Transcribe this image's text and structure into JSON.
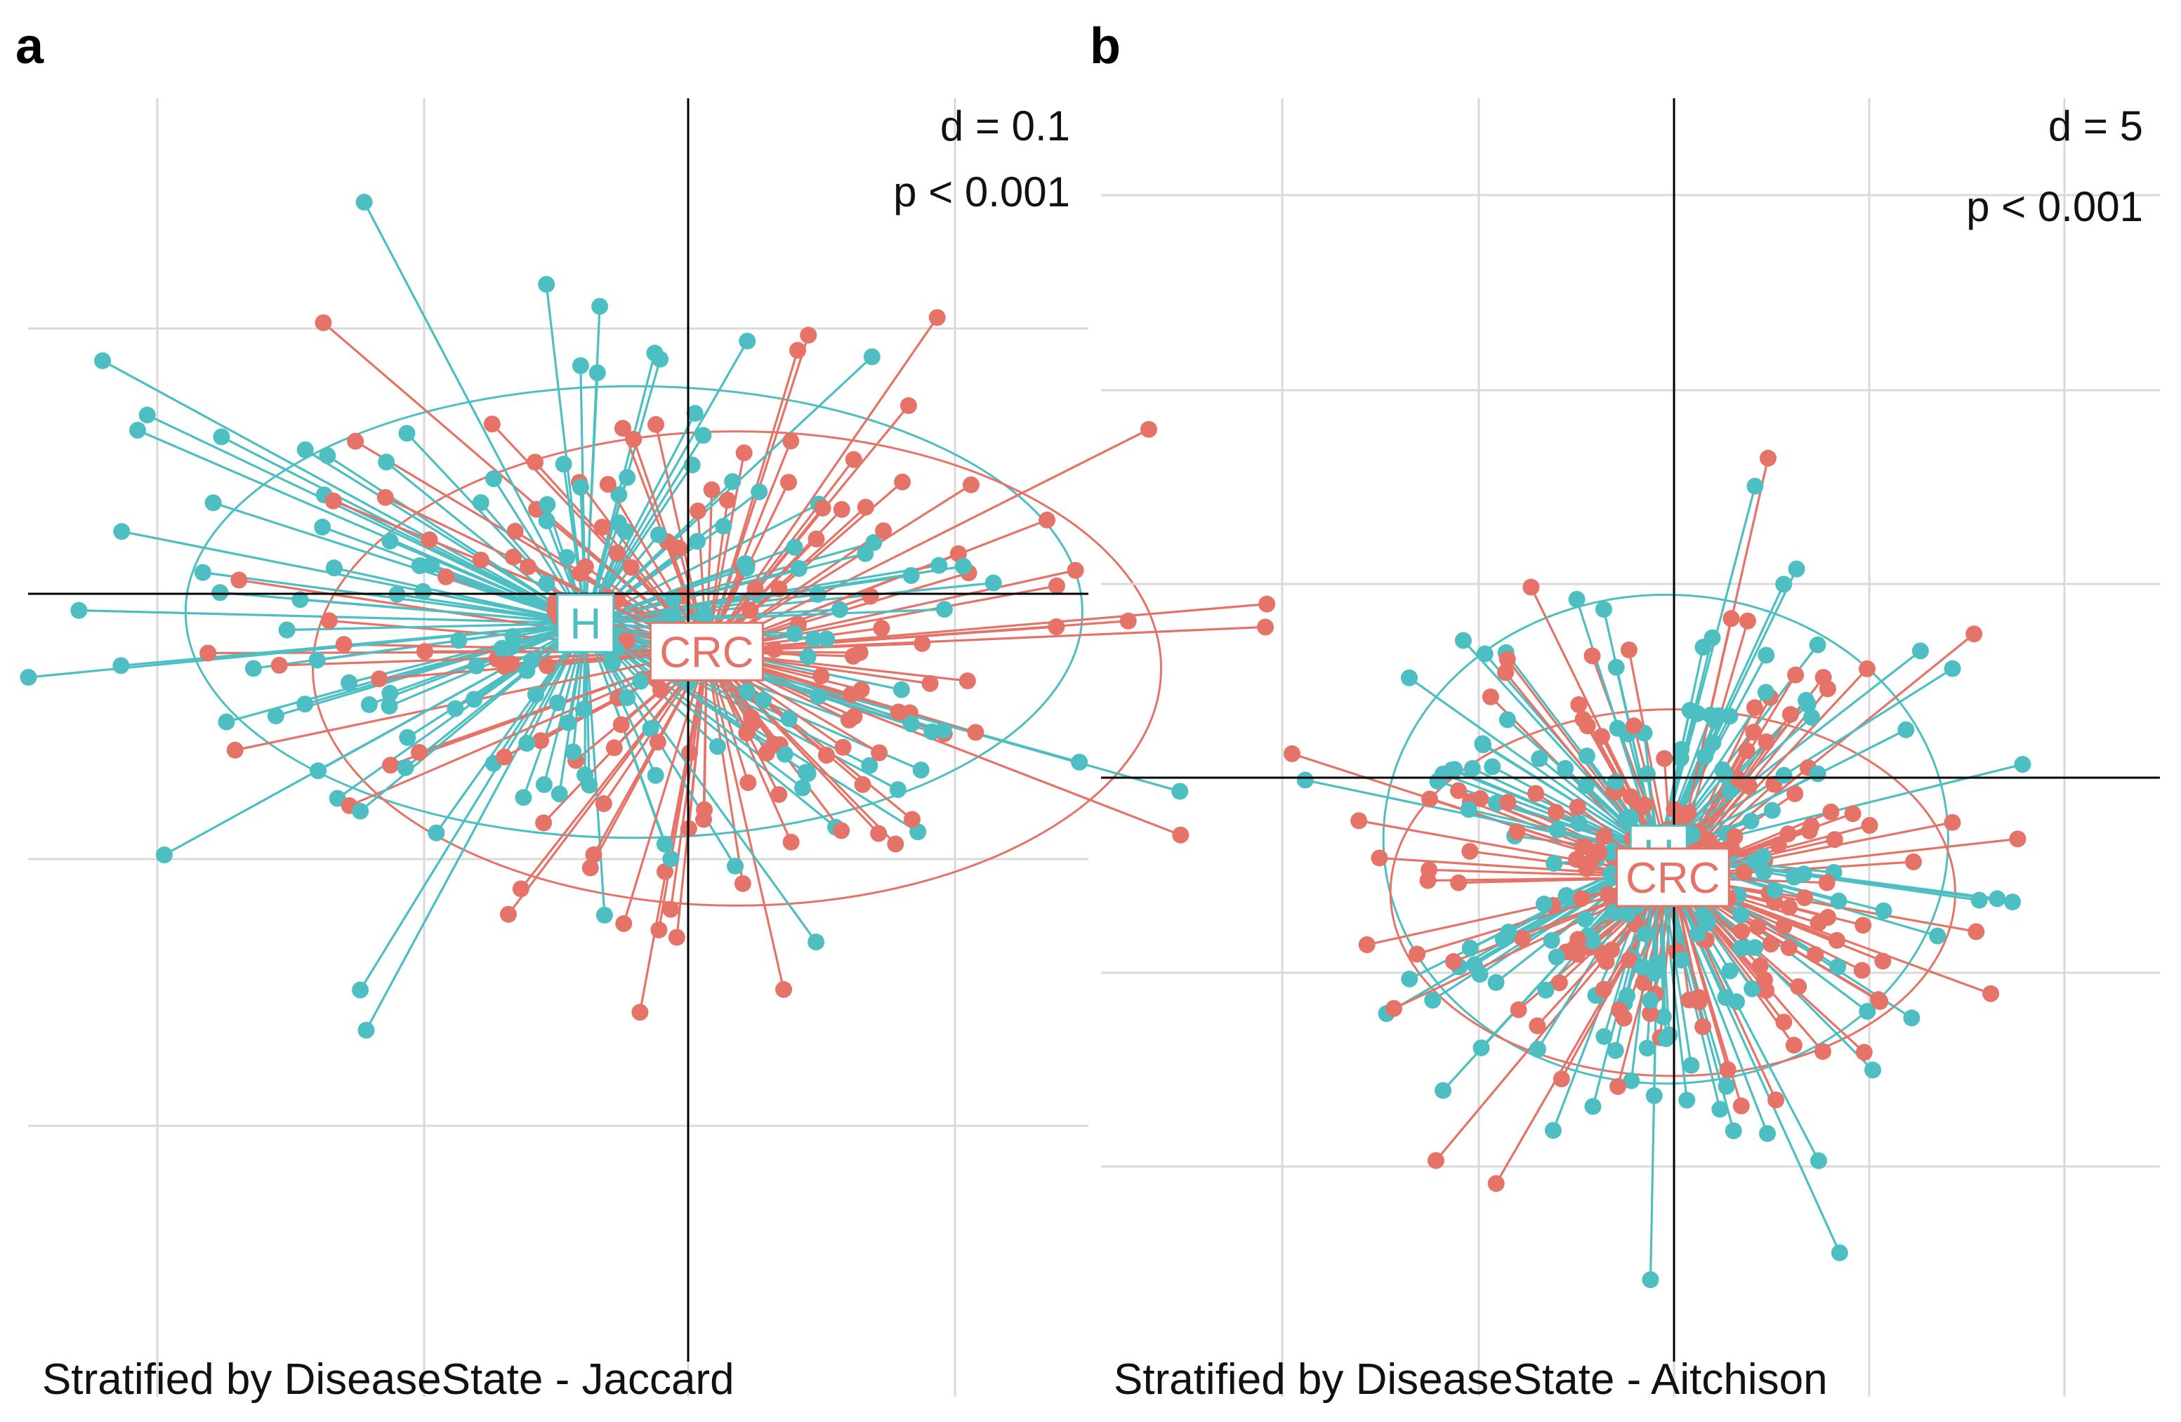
{
  "colors": {
    "CRC": "#E57368",
    "H": "#4DBFC3",
    "grid": "#d9d9d9",
    "axis": "#000000",
    "text": "#111111"
  },
  "chart_data": [
    {
      "panel": "a",
      "type": "scatter",
      "title": "",
      "caption": "Stratified by DiseaseState - Jaccard",
      "stats": {
        "d": "d = 0.1",
        "p": "p < 0.001"
      },
      "xlim": [
        -1.0,
        0.75
      ],
      "ylim": [
        -1.35,
        0.95
      ],
      "grid": true,
      "groups": [
        {
          "name": "H",
          "label": "H",
          "centroid": [
            -0.08,
            0.02
          ],
          "ellipse": {
            "cx": 0.0,
            "cy": 0.04,
            "rx": 0.74,
            "ry": 0.4
          }
        },
        {
          "name": "CRC",
          "label": "CRC",
          "centroid": [
            0.12,
            -0.03
          ],
          "ellipse": {
            "cx": 0.17,
            "cy": -0.06,
            "rx": 0.7,
            "ry": 0.42
          }
        }
      ],
      "n_points_per_group": 150,
      "seed": 17
    },
    {
      "panel": "b",
      "type": "scatter",
      "title": "",
      "caption": "Stratified by DiseaseState - Aitchison",
      "stats": {
        "d": "d = 5",
        "p": "p < 0.001"
      },
      "xlim": [
        -80,
        70
      ],
      "ylim": [
        -70,
        100
      ],
      "grid": true,
      "groups": [
        {
          "name": "H",
          "label": "H",
          "centroid": [
            -1,
            1
          ],
          "ellipse": {
            "cx": 0,
            "cy": 3,
            "rx": 40,
            "ry": 32
          }
        },
        {
          "name": "CRC",
          "label": "CRC",
          "centroid": [
            1,
            -2
          ],
          "ellipse": {
            "cx": 1,
            "cy": -4,
            "rx": 40,
            "ry": 24
          }
        }
      ],
      "n_points_per_group": 165,
      "seed": 91
    }
  ]
}
